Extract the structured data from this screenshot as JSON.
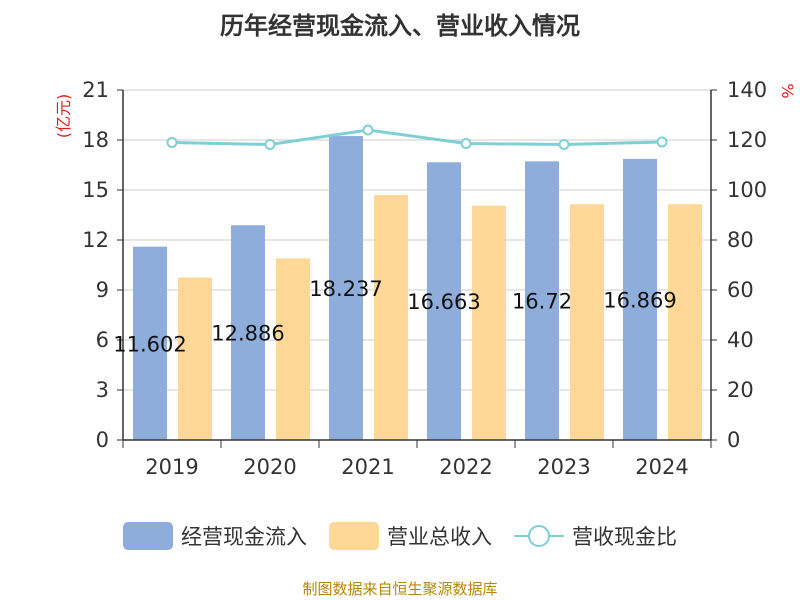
{
  "chart_data": {
    "type": "bar",
    "title": "历年经营现金流入、营业收入情况",
    "left_axis_unit": "(亿元)",
    "right_axis_unit": "%",
    "categories": [
      "2019",
      "2020",
      "2021",
      "2022",
      "2023",
      "2024"
    ],
    "left_axis": {
      "min": 0,
      "max": 21,
      "ticks": [
        0,
        3,
        6,
        9,
        12,
        15,
        18,
        21
      ]
    },
    "right_axis": {
      "min": 0,
      "max": 140,
      "ticks": [
        0,
        20,
        40,
        60,
        80,
        100,
        120,
        140
      ]
    },
    "series": [
      {
        "name": "经营现金流入",
        "kind": "bar",
        "axis": "left",
        "color": "#8eadda",
        "values": [
          11.602,
          12.886,
          18.237,
          16.663,
          16.72,
          16.869
        ],
        "data_labels": [
          "11.602",
          "12.886",
          "18.237",
          "16.663",
          "16.72",
          "16.869"
        ]
      },
      {
        "name": "营业总收入",
        "kind": "bar",
        "axis": "left",
        "color": "#ffd898",
        "values": [
          9.75,
          10.9,
          14.7,
          14.05,
          14.15,
          14.15
        ]
      },
      {
        "name": "营收现金比",
        "kind": "line",
        "axis": "right",
        "color": "#7fd0d4",
        "values": [
          119.0,
          118.2,
          124.0,
          118.6,
          118.2,
          119.2
        ]
      }
    ],
    "grid": true,
    "legend_position": "bottom"
  },
  "source": "制图数据来自恒生聚源数据库"
}
